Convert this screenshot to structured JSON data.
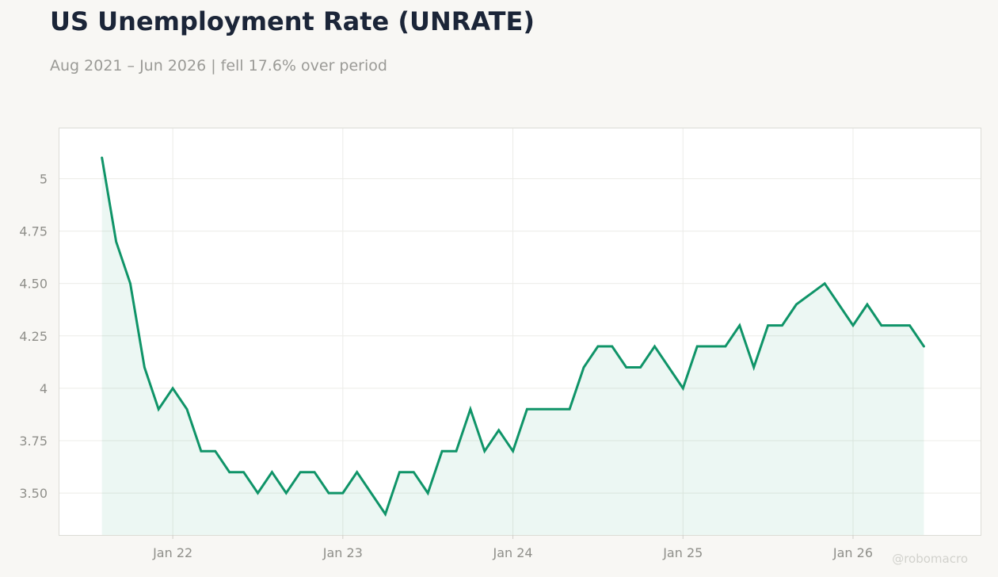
{
  "header": {
    "title": "US Unemployment Rate (UNRATE)",
    "subtitle": "Aug 2021 – Jun 2026 | fell 17.6% over period"
  },
  "watermark": "@robomacro",
  "colors": {
    "line": "#0f9468",
    "fill": "#0f9468",
    "background": "#f8f7f4",
    "plot_background": "#ffffff",
    "grid": "#ecece8",
    "title": "#1b2538",
    "muted_text": "#9a9a96"
  },
  "chart_data": {
    "type": "area",
    "title": "US Unemployment Rate (UNRATE)",
    "subtitle": "Aug 2021 – Jun 2026 | fell 17.6% over period",
    "xlabel": "",
    "ylabel": "",
    "x_start": "2021-08",
    "x_end": "2026-06",
    "xlim": [
      "2021-05",
      "2026-10"
    ],
    "ylim": [
      3.3,
      5.24
    ],
    "grid": true,
    "legend": "none",
    "x_ticks": [
      {
        "date": "2022-01",
        "label": "Jan 22"
      },
      {
        "date": "2023-01",
        "label": "Jan 23"
      },
      {
        "date": "2024-01",
        "label": "Jan 24"
      },
      {
        "date": "2025-01",
        "label": "Jan 25"
      },
      {
        "date": "2026-01",
        "label": "Jan 26"
      }
    ],
    "y_ticks": [
      {
        "value": 3.5,
        "label": "3.50"
      },
      {
        "value": 3.75,
        "label": "3.75"
      },
      {
        "value": 4.0,
        "label": "4"
      },
      {
        "value": 4.25,
        "label": "4.25"
      },
      {
        "value": 4.5,
        "label": "4.50"
      },
      {
        "value": 4.75,
        "label": "4.75"
      },
      {
        "value": 5.0,
        "label": "5"
      }
    ],
    "series": [
      {
        "x": [
          "2021-08",
          "2021-09",
          "2021-10",
          "2021-11",
          "2021-12",
          "2022-01",
          "2022-02",
          "2022-03",
          "2022-04",
          "2022-05",
          "2022-06",
          "2022-07",
          "2022-08",
          "2022-09",
          "2022-10",
          "2022-11",
          "2022-12",
          "2023-01",
          "2023-02",
          "2023-03",
          "2023-04",
          "2023-05",
          "2023-06",
          "2023-07",
          "2023-08",
          "2023-09",
          "2023-10",
          "2023-11",
          "2023-12",
          "2024-01",
          "2024-02",
          "2024-03",
          "2024-04",
          "2024-05",
          "2024-06",
          "2024-07",
          "2024-08",
          "2024-09",
          "2024-10",
          "2024-11",
          "2024-12",
          "2025-01",
          "2025-02",
          "2025-03",
          "2025-04",
          "2025-05",
          "2025-06",
          "2025-07",
          "2025-08",
          "2025-09",
          "2025-10",
          "2025-11",
          "2025-12",
          "2026-01",
          "2026-02",
          "2026-03",
          "2026-04",
          "2026-05",
          "2026-06"
        ],
        "values": [
          5.1,
          4.7,
          4.5,
          4.1,
          3.9,
          4.0,
          3.9,
          3.7,
          3.7,
          3.6,
          3.6,
          3.5,
          3.6,
          3.5,
          3.6,
          3.6,
          3.5,
          3.5,
          3.6,
          3.5,
          3.4,
          3.6,
          3.6,
          3.5,
          3.7,
          3.7,
          3.9,
          3.7,
          3.8,
          3.7,
          3.9,
          3.9,
          3.9,
          3.9,
          4.1,
          4.2,
          4.2,
          4.1,
          4.1,
          4.2,
          4.1,
          4.0,
          4.2,
          4.2,
          4.2,
          4.3,
          4.1,
          4.3,
          4.3,
          4.4,
          4.45,
          4.5,
          4.4,
          4.3,
          4.4,
          4.3,
          4.3,
          4.3,
          4.2
        ]
      }
    ]
  }
}
